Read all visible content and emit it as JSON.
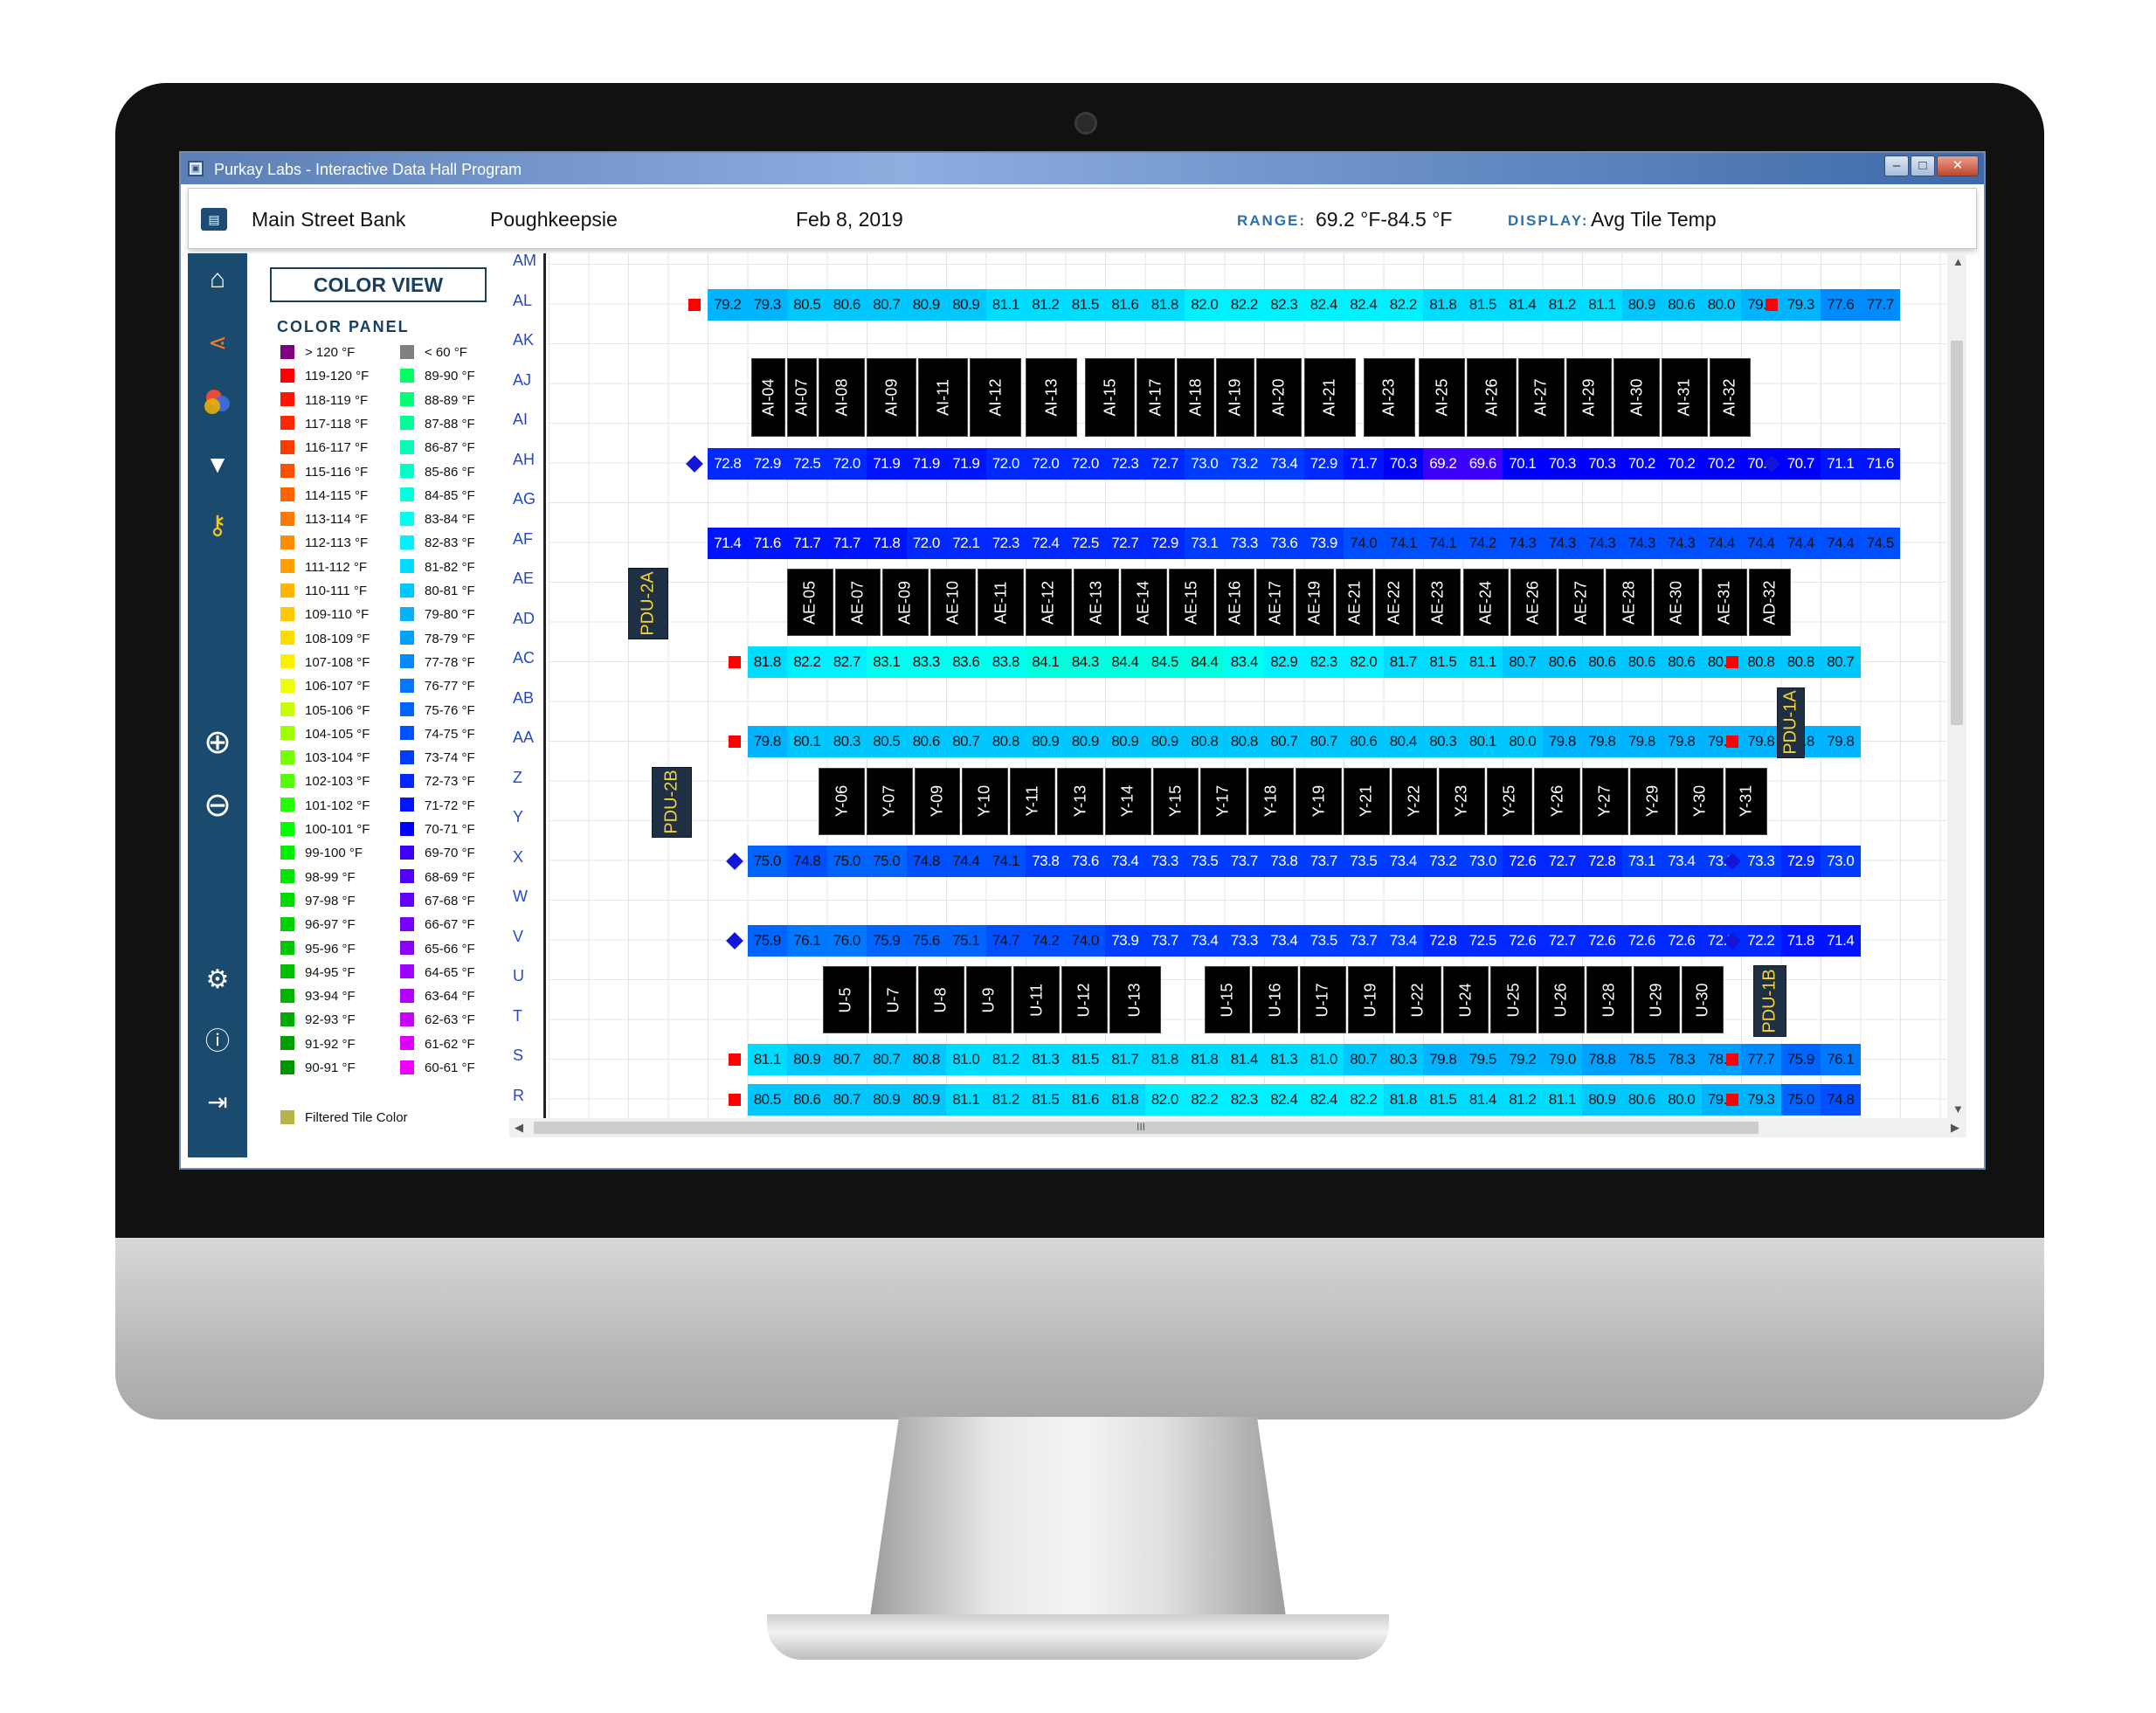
{
  "window": {
    "title": "Purkay Labs - Interactive Data Hall Program",
    "min": "–",
    "max": "□",
    "close": "✕"
  },
  "header": {
    "customer": "Main Street Bank",
    "site": "Poughkeepsie",
    "date": "Feb 8, 2019",
    "range_label": "RANGE:",
    "range_value": "69.2 °F-84.5 °F",
    "display_label": "DISPLAY:",
    "display_value": "Avg Tile Temp"
  },
  "sidebar": {
    "icons": [
      "home-icon",
      "share-icon",
      "color-icon",
      "filter-icon",
      "key-icon",
      "zoom-in-icon",
      "zoom-out-icon",
      "settings-icon",
      "info-icon",
      "exit-icon"
    ]
  },
  "legend": {
    "view_button": "COLOR VIEW",
    "panel_title": "COLOR PANEL",
    "col1": [
      {
        "label": "> 120 °F",
        "color": "#800080"
      },
      {
        "label": "119-120 °F",
        "color": "#ff0000"
      },
      {
        "label": "118-119 °F",
        "color": "#ff1400"
      },
      {
        "label": "117-118 °F",
        "color": "#ff2800"
      },
      {
        "label": "116-117 °F",
        "color": "#ff3c00"
      },
      {
        "label": "115-116 °F",
        "color": "#ff5000"
      },
      {
        "label": "114-115 °F",
        "color": "#ff6400"
      },
      {
        "label": "113-114 °F",
        "color": "#ff7800"
      },
      {
        "label": "112-113 °F",
        "color": "#ff8c00"
      },
      {
        "label": "111-112 °F",
        "color": "#ffa000"
      },
      {
        "label": "110-111 °F",
        "color": "#ffb400"
      },
      {
        "label": "109-110 °F",
        "color": "#ffc800"
      },
      {
        "label": "108-109 °F",
        "color": "#ffdc00"
      },
      {
        "label": "107-108 °F",
        "color": "#fff000"
      },
      {
        "label": "106-107 °F",
        "color": "#f0ff00"
      },
      {
        "label": "105-106 °F",
        "color": "#c8ff00"
      },
      {
        "label": "104-105 °F",
        "color": "#a0ff00"
      },
      {
        "label": "103-104 °F",
        "color": "#78ff00"
      },
      {
        "label": "102-103 °F",
        "color": "#50ff00"
      },
      {
        "label": "101-102 °F",
        "color": "#28ff00"
      },
      {
        "label": "100-101 °F",
        "color": "#00ff00"
      },
      {
        "label": "99-100 °F",
        "color": "#00f000"
      },
      {
        "label": "98-99 °F",
        "color": "#00e600"
      },
      {
        "label": "97-98 °F",
        "color": "#00dc00"
      },
      {
        "label": "96-97 °F",
        "color": "#00d200"
      },
      {
        "label": "95-96 °F",
        "color": "#00c800"
      },
      {
        "label": "94-95 °F",
        "color": "#00be00"
      },
      {
        "label": "93-94 °F",
        "color": "#00b400"
      },
      {
        "label": "92-93 °F",
        "color": "#00aa00"
      },
      {
        "label": "91-92 °F",
        "color": "#00a000"
      },
      {
        "label": "90-91 °F",
        "color": "#009600"
      }
    ],
    "col2": [
      {
        "label": "< 60 °F",
        "color": "#808080"
      },
      {
        "label": "89-90 °F",
        "color": "#00ff64"
      },
      {
        "label": "88-89 °F",
        "color": "#00ff78"
      },
      {
        "label": "87-88 °F",
        "color": "#00ff96"
      },
      {
        "label": "86-87 °F",
        "color": "#00ffb4"
      },
      {
        "label": "85-86 °F",
        "color": "#00ffc8"
      },
      {
        "label": "84-85 °F",
        "color": "#00ffdc"
      },
      {
        "label": "83-84 °F",
        "color": "#00fff0"
      },
      {
        "label": "82-83 °F",
        "color": "#00f0ff"
      },
      {
        "label": "81-82 °F",
        "color": "#00dcff"
      },
      {
        "label": "80-81 °F",
        "color": "#00c8ff"
      },
      {
        "label": "79-80 °F",
        "color": "#00b4ff"
      },
      {
        "label": "78-79 °F",
        "color": "#00a0ff"
      },
      {
        "label": "77-78 °F",
        "color": "#008cff"
      },
      {
        "label": "76-77 °F",
        "color": "#0078ff"
      },
      {
        "label": "75-76 °F",
        "color": "#0064ff"
      },
      {
        "label": "74-75 °F",
        "color": "#0050ff"
      },
      {
        "label": "73-74 °F",
        "color": "#003cff"
      },
      {
        "label": "72-73 °F",
        "color": "#0028ff"
      },
      {
        "label": "71-72 °F",
        "color": "#0014ff"
      },
      {
        "label": "70-71 °F",
        "color": "#0000ff"
      },
      {
        "label": "69-70 °F",
        "color": "#3c00ff"
      },
      {
        "label": "68-69 °F",
        "color": "#5000ff"
      },
      {
        "label": "67-68 °F",
        "color": "#6400ff"
      },
      {
        "label": "66-67 °F",
        "color": "#7800ff"
      },
      {
        "label": "65-66 °F",
        "color": "#8c00ff"
      },
      {
        "label": "64-65 °F",
        "color": "#a000ff"
      },
      {
        "label": "63-64 °F",
        "color": "#b400ff"
      },
      {
        "label": "62-63 °F",
        "color": "#c800ff"
      },
      {
        "label": "61-62 °F",
        "color": "#dc00ff"
      },
      {
        "label": "60-61 °F",
        "color": "#f000ff"
      }
    ],
    "filtered": {
      "label": "Filtered Tile Color",
      "color": "#b9b447"
    }
  },
  "rows": [
    "AM",
    "AL",
    "AK",
    "AJ",
    "AI",
    "AH",
    "AG",
    "AF",
    "AE",
    "AD",
    "AC",
    "AB",
    "AA",
    "Z",
    "Y",
    "X",
    "W",
    "V",
    "U",
    "T",
    "S",
    "R"
  ],
  "tile_rows": [
    {
      "row": "AL",
      "start": 4,
      "values": [
        79.2,
        79.3,
        80.5,
        80.6,
        80.7,
        80.9,
        80.9,
        81.1,
        81.2,
        81.5,
        81.6,
        81.8,
        82.0,
        82.2,
        82.3,
        82.4,
        82.4,
        82.2,
        81.8,
        81.5,
        81.4,
        81.2,
        81.1,
        80.9,
        80.6,
        80.0,
        79.4,
        79.3,
        77.6,
        77.7
      ]
    },
    {
      "row": "AH",
      "start": 4,
      "values": [
        72.8,
        72.9,
        72.5,
        72.0,
        71.9,
        71.9,
        71.9,
        72.0,
        72.0,
        72.0,
        72.3,
        72.7,
        73.0,
        73.2,
        73.4,
        72.9,
        71.7,
        70.3,
        69.2,
        69.6,
        70.1,
        70.3,
        70.3,
        70.2,
        70.2,
        70.2,
        70.4,
        70.7,
        71.1,
        71.6
      ]
    },
    {
      "row": "AF",
      "start": 4,
      "values": [
        71.4,
        71.6,
        71.7,
        71.7,
        71.8,
        72.0,
        72.1,
        72.3,
        72.4,
        72.5,
        72.7,
        72.9,
        73.1,
        73.3,
        73.6,
        73.9,
        74.0,
        74.1,
        74.1,
        74.2,
        74.3,
        74.3,
        74.3,
        74.3,
        74.3,
        74.4,
        74.4,
        74.4,
        74.4,
        74.5
      ]
    },
    {
      "row": "AC",
      "start": 5,
      "values": [
        81.8,
        82.2,
        82.7,
        83.1,
        83.3,
        83.6,
        83.8,
        84.1,
        84.3,
        84.4,
        84.5,
        84.4,
        83.4,
        82.9,
        82.3,
        82.0,
        81.7,
        81.5,
        81.1,
        80.7,
        80.6,
        80.6,
        80.6,
        80.6,
        80.7,
        80.8,
        80.8,
        80.7
      ]
    },
    {
      "row": "AA",
      "start": 5,
      "values": [
        79.8,
        80.1,
        80.3,
        80.5,
        80.6,
        80.7,
        80.8,
        80.9,
        80.9,
        80.9,
        80.9,
        80.8,
        80.8,
        80.7,
        80.7,
        80.6,
        80.4,
        80.3,
        80.1,
        80.0,
        79.8,
        79.8,
        79.8,
        79.8,
        79.9,
        79.8,
        79.8,
        79.8
      ]
    },
    {
      "row": "X",
      "start": 5,
      "values": [
        75.0,
        74.8,
        75.0,
        75.0,
        74.8,
        74.4,
        74.1,
        73.8,
        73.6,
        73.4,
        73.3,
        73.5,
        73.7,
        73.8,
        73.7,
        73.5,
        73.4,
        73.2,
        73.0,
        72.6,
        72.7,
        72.8,
        73.1,
        73.4,
        73.5,
        73.3,
        72.9,
        73.0
      ]
    },
    {
      "row": "V",
      "start": 5,
      "values": [
        75.9,
        76.1,
        76.0,
        75.9,
        75.6,
        75.1,
        74.7,
        74.2,
        74.0,
        73.9,
        73.7,
        73.4,
        73.3,
        73.4,
        73.5,
        73.7,
        73.4,
        72.8,
        72.5,
        72.6,
        72.7,
        72.6,
        72.6,
        72.6,
        72.5,
        72.2,
        71.8,
        71.4
      ]
    },
    {
      "row": "S",
      "start": 5,
      "values": [
        81.1,
        80.9,
        80.7,
        80.7,
        80.8,
        81.0,
        81.2,
        81.3,
        81.5,
        81.7,
        81.8,
        81.8,
        81.4,
        81.3,
        81.0,
        80.7,
        80.3,
        79.8,
        79.5,
        79.2,
        79.0,
        78.8,
        78.5,
        78.3,
        78.0,
        77.7,
        75.9,
        76.1
      ]
    },
    {
      "row": "R",
      "start": 5,
      "values": [
        80.5,
        80.6,
        80.7,
        80.9,
        80.9,
        81.1,
        81.2,
        81.5,
        81.6,
        81.8,
        82.0,
        82.2,
        82.3,
        82.4,
        82.4,
        82.2,
        81.8,
        81.5,
        81.4,
        81.2,
        81.1,
        80.9,
        80.6,
        80.0,
        79.4,
        79.3,
        75.0,
        74.8
      ]
    }
  ],
  "rack_rows": [
    {
      "top_row": "AJ",
      "labels": [
        [
          "AI-04",
          5.1
        ],
        [
          "AI-07",
          6.0
        ],
        [
          "AI-08",
          6.8
        ],
        [
          "AI-09",
          8.0
        ],
        [
          "AI-11",
          9.3
        ],
        [
          "AI-12",
          10.6
        ],
        [
          "AI-13",
          12.0
        ],
        [
          "AI-15",
          13.5
        ],
        [
          "AI-17",
          14.8
        ],
        [
          "AI-18",
          15.8
        ],
        [
          "AI-19",
          16.8
        ],
        [
          "AI-20",
          17.8
        ],
        [
          "AI-21",
          19.0
        ],
        [
          "AI-23",
          20.5
        ],
        [
          "AI-25",
          21.9
        ],
        [
          "AI-26",
          23.1
        ],
        [
          "AI-27",
          24.4
        ],
        [
          "AI-29",
          25.6
        ],
        [
          "AI-30",
          26.8
        ],
        [
          "AI-31",
          28.0
        ],
        [
          "AI-32",
          29.2
        ]
      ]
    },
    {
      "top_row": "AE",
      "labels": [
        [
          "AE-05",
          6.0
        ],
        [
          "AE-07",
          7.2
        ],
        [
          "AE-09",
          8.4
        ],
        [
          "AE-10",
          9.6
        ],
        [
          "AE-11",
          10.8
        ],
        [
          "AE-12",
          12.0
        ],
        [
          "AE-13",
          13.2
        ],
        [
          "AE-14",
          14.4
        ],
        [
          "AE-15",
          15.6
        ],
        [
          "AE-16",
          16.8
        ],
        [
          "AE-17",
          17.8
        ],
        [
          "AE-19",
          18.8
        ],
        [
          "AE-21",
          19.8
        ],
        [
          "AE-22",
          20.8
        ],
        [
          "AE-23",
          21.8
        ],
        [
          "AE-24",
          23.0
        ],
        [
          "AE-26",
          24.2
        ],
        [
          "AE-27",
          25.4
        ],
        [
          "AE-28",
          26.6
        ],
        [
          "AE-30",
          27.8
        ],
        [
          "AE-31",
          29.0
        ],
        [
          "AD-32",
          30.2
        ]
      ]
    },
    {
      "top_row": "Z",
      "labels": [
        [
          "Y-06",
          6.8
        ],
        [
          "Y-07",
          8.0
        ],
        [
          "Y-09",
          9.2
        ],
        [
          "Y-10",
          10.4
        ],
        [
          "Y-11",
          11.6
        ],
        [
          "Y-13",
          12.8
        ],
        [
          "Y-14",
          14.0
        ],
        [
          "Y-15",
          15.2
        ],
        [
          "Y-17",
          16.4
        ],
        [
          "Y-18",
          17.6
        ],
        [
          "Y-19",
          18.8
        ],
        [
          "Y-21",
          20.0
        ],
        [
          "Y-22",
          21.2
        ],
        [
          "Y-23",
          22.4
        ],
        [
          "Y-25",
          23.6
        ],
        [
          "Y-26",
          24.8
        ],
        [
          "Y-27",
          26.0
        ],
        [
          "Y-29",
          27.2
        ],
        [
          "Y-30",
          28.4
        ],
        [
          "Y-31",
          29.6
        ]
      ]
    },
    {
      "top_row": "U",
      "labels": [
        [
          "U-5",
          6.9
        ],
        [
          "U-7",
          8.1
        ],
        [
          "U-8",
          9.3
        ],
        [
          "U-9",
          10.5
        ],
        [
          "U-11",
          11.7
        ],
        [
          "U-12",
          12.9
        ],
        [
          "U-13",
          14.1
        ],
        [
          "U-15",
          16.5
        ],
        [
          "U-16",
          17.7
        ],
        [
          "U-17",
          18.9
        ],
        [
          "U-19",
          20.1
        ],
        [
          "U-22",
          21.3
        ],
        [
          "U-24",
          22.5
        ],
        [
          "U-25",
          23.7
        ],
        [
          "U-26",
          24.9
        ],
        [
          "U-28",
          26.1
        ],
        [
          "U-29",
          27.3
        ],
        [
          "U-30",
          28.5
        ]
      ]
    }
  ],
  "pdus": [
    {
      "label": "PDU-2A"
    },
    {
      "label": "PDU-2B"
    },
    {
      "label": "PDU-1A"
    },
    {
      "label": "PDU-1B"
    }
  ],
  "grid_faint_labels": [
    "22",
    "18",
    "22"
  ],
  "scroll": {
    "h_mark": "III",
    "v_mark": "≡"
  }
}
